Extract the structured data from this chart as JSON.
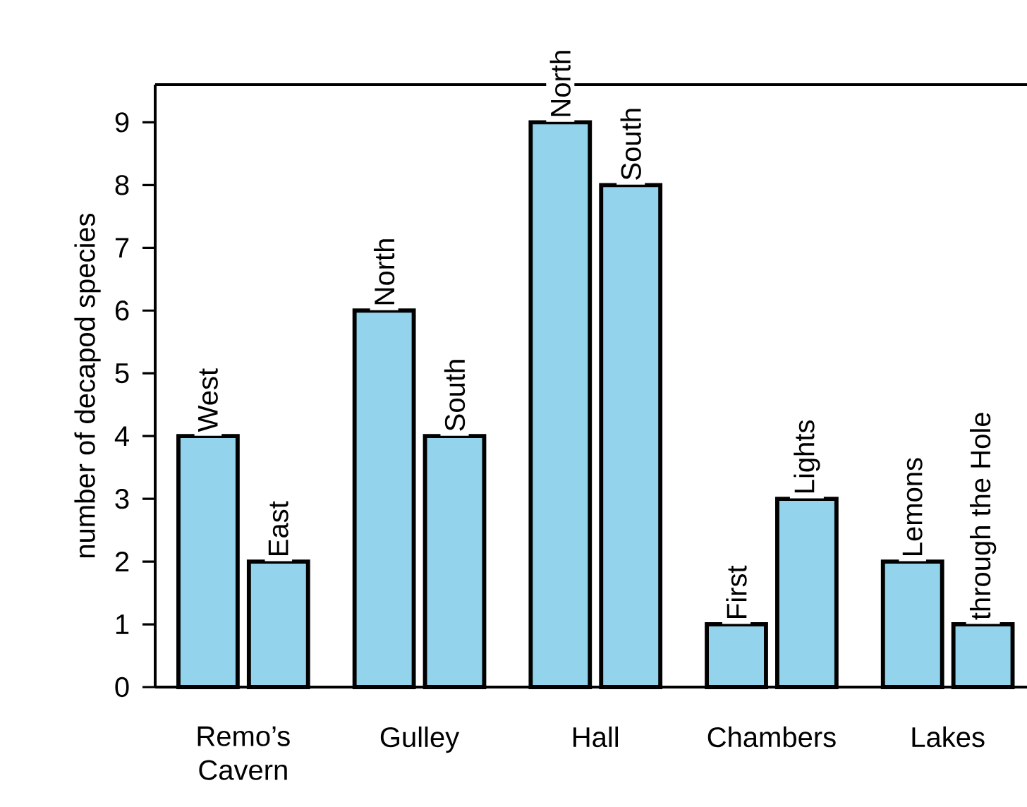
{
  "chart_data": {
    "type": "bar",
    "ylabel": "number of decapod species",
    "categories": [
      "Remo’s Cavern",
      "Gulley",
      "Hall",
      "Chambers",
      "Lakes"
    ],
    "series": [
      {
        "color": "#93d4ec",
        "values": [
          4,
          6,
          9,
          1,
          2
        ],
        "value_labels": [
          "West",
          "North",
          "North",
          "First",
          "Lemons"
        ]
      },
      {
        "color": "#93d4ec",
        "values": [
          2,
          4,
          8,
          3,
          1
        ],
        "value_labels": [
          "East",
          "South",
          "South",
          "Lights",
          "through the Hole"
        ]
      }
    ],
    "ylim": [
      0,
      9.6
    ],
    "yticks": [
      0,
      1,
      2,
      3,
      4,
      5,
      6,
      7,
      8,
      9
    ]
  }
}
